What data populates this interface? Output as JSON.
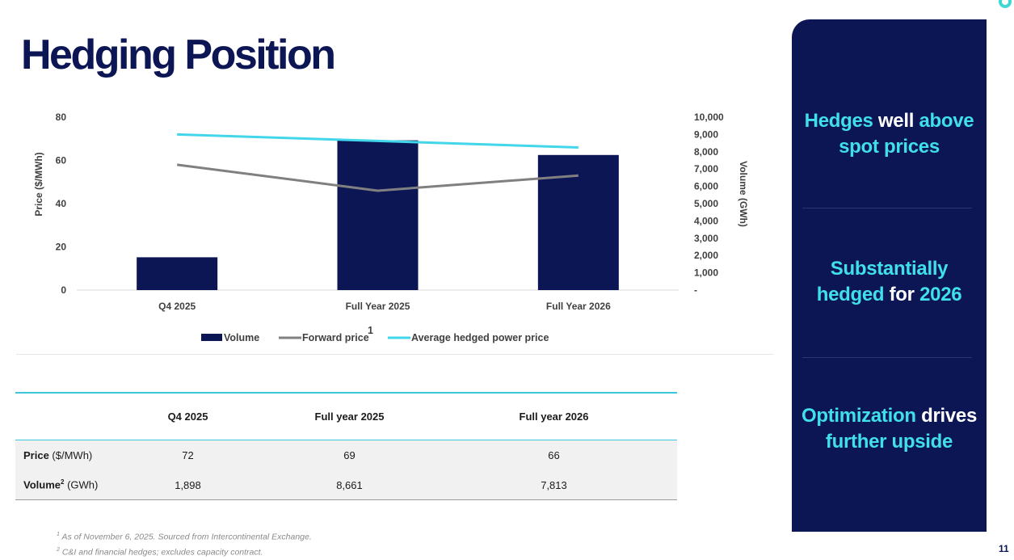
{
  "title": "Hedging Position",
  "chart_data": {
    "type": "bar+line",
    "categories": [
      "Q4 2025",
      "Full Year 2025",
      "Full Year 2026"
    ],
    "series": [
      {
        "name": "Volume",
        "type": "bar",
        "axis": "right",
        "values": [
          1898,
          8661,
          7813
        ],
        "color": "#0c1654"
      },
      {
        "name": "Forward price",
        "type": "line",
        "axis": "left",
        "values": [
          58,
          46,
          53
        ],
        "color": "#808080"
      },
      {
        "name": "Average hedged power price",
        "type": "line",
        "axis": "left",
        "values": [
          72,
          69,
          66
        ],
        "color": "#42d6ea"
      }
    ],
    "ylabel_left": "Price ($/MWh)",
    "ylabel_right": "Volume (GWh)",
    "ylim_left": [
      0,
      80
    ],
    "ylim_right": [
      0,
      10000
    ],
    "yticks_left": [
      "0",
      "20",
      "40",
      "60",
      "80"
    ],
    "yticks_right": [
      "-",
      "1,000",
      "2,000",
      "3,000",
      "4,000",
      "5,000",
      "6,000",
      "7,000",
      "8,000",
      "9,000",
      "10,000"
    ],
    "legend": [
      "Volume",
      "Forward price",
      "Average hedged power price"
    ],
    "legend_placement": "bottom",
    "legend_note": "1",
    "grid": false
  },
  "table": {
    "headers": [
      "",
      "Q4 2025",
      "Full year 2025",
      "Full year 2026"
    ],
    "rows": [
      {
        "label_bold": "Price",
        "label_unit": " ($/MWh)",
        "values": [
          "72",
          "69",
          "66"
        ]
      },
      {
        "label_bold": "Volume",
        "label_sup": "2",
        "label_unit": " (GWh)",
        "values": [
          "1,898",
          "8,661",
          "7,813"
        ]
      }
    ]
  },
  "footnotes": {
    "n1_mark": "1",
    "n1": "As of November 6, 2025. Sourced from Intercontinental Exchange.",
    "n2_mark": "2",
    "n2": "C&I and financial hedges; excludes capacity contract."
  },
  "panel": {
    "m1": {
      "a": "Hedges",
      "b": " well ",
      "c": "above",
      "d": "spot prices"
    },
    "m2": {
      "a": "Substantially",
      "b": "hedged",
      "c": " for ",
      "d": "2026"
    },
    "m3": {
      "a": "Optimization",
      "b": " drives",
      "c": "further upside"
    }
  },
  "page_number": "11",
  "colors": {
    "navy": "#0c1654",
    "cyan": "#3fe0ec",
    "gray_line": "#808080"
  }
}
